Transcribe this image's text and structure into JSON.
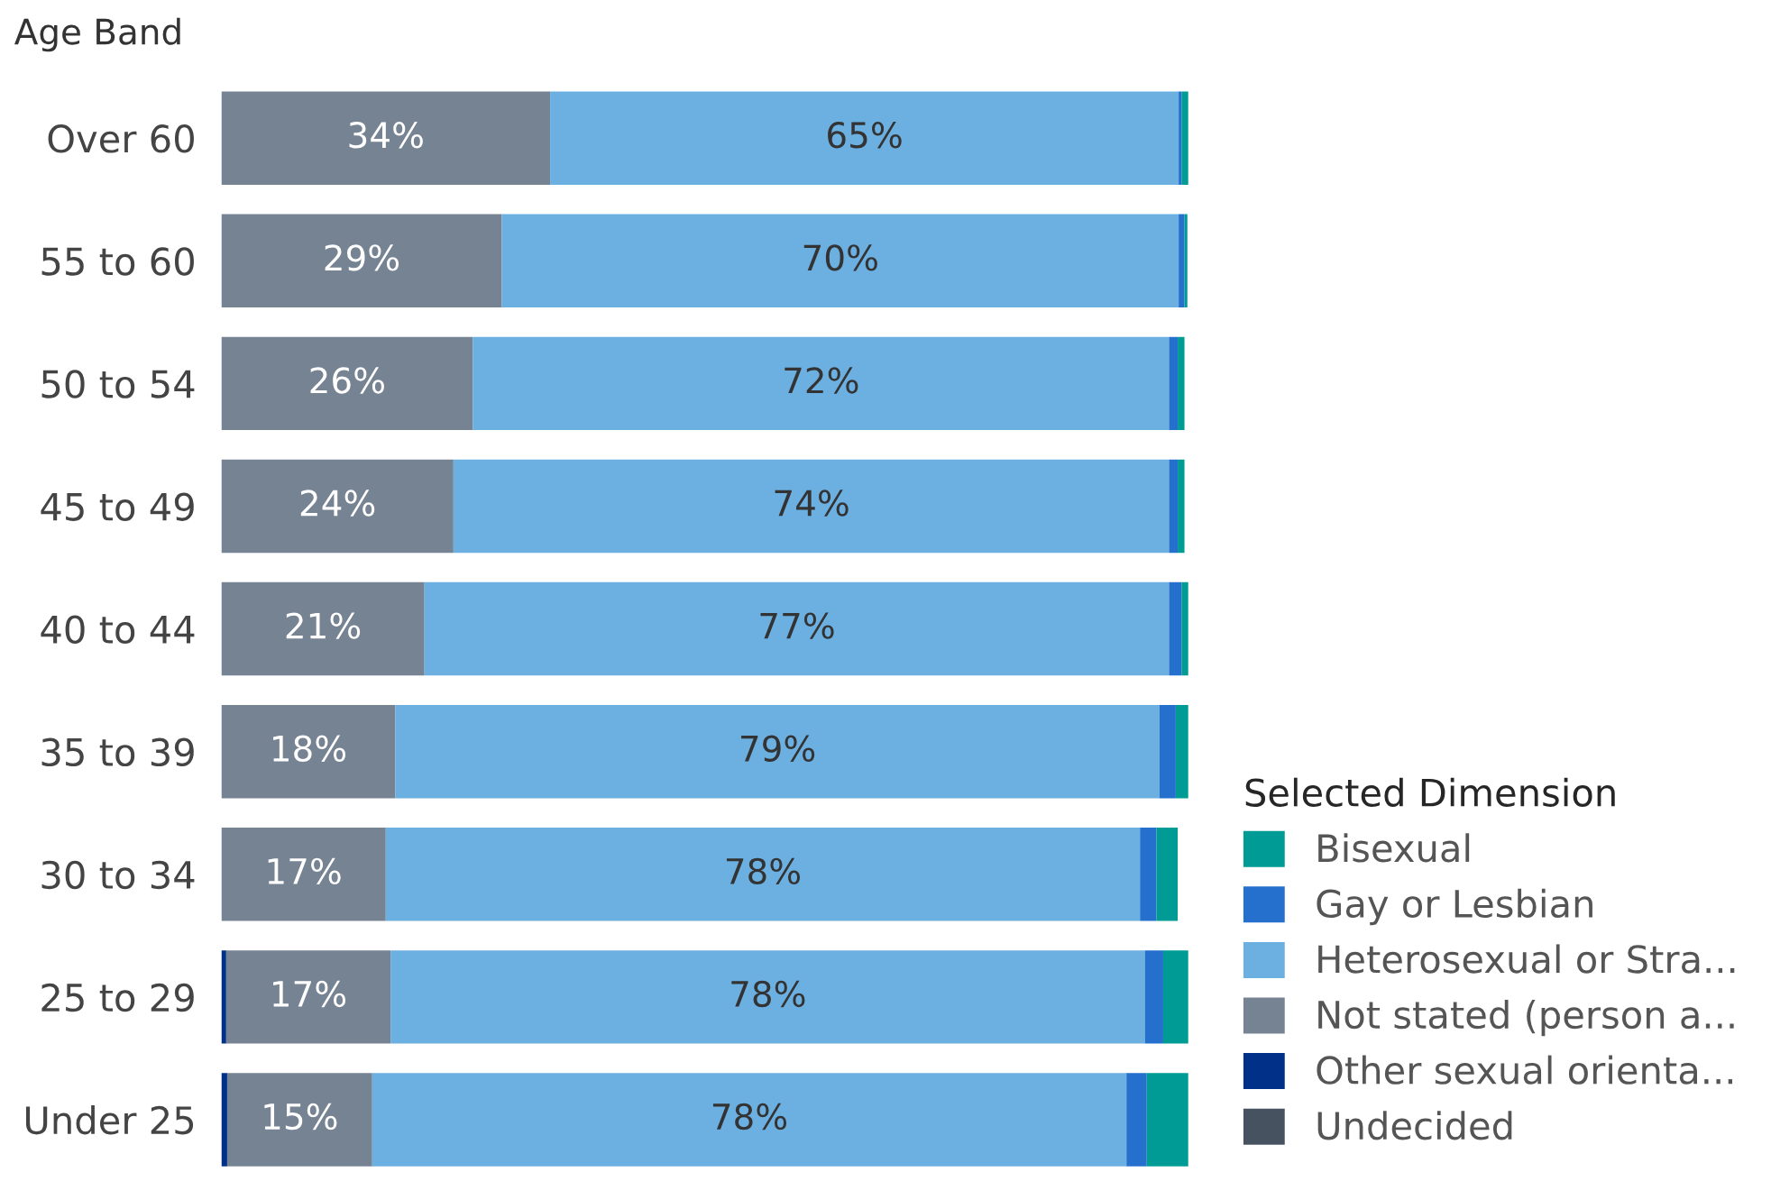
{
  "chart_data": {
    "type": "bar",
    "orientation": "horizontal",
    "stacked": true,
    "xlim": [
      0,
      100
    ],
    "ylabel": "Age Band",
    "legend_title": "Selected Dimension",
    "legend": "bottom right",
    "categories": [
      "Over 60",
      "55 to 60",
      "50 to 54",
      "45 to 49",
      "40 to 44",
      "35 to 39",
      "30 to 34",
      "25 to 29",
      "Under 25"
    ],
    "series": [
      {
        "name": "Undecided",
        "color": "#465260",
        "values": [
          null,
          null,
          null,
          null,
          null,
          null,
          null,
          null,
          null
        ]
      },
      {
        "name": "Other sexual orienta...",
        "color": "#003087",
        "values": [
          null,
          null,
          null,
          null,
          null,
          null,
          null,
          0.5,
          0.6
        ]
      },
      {
        "name": "Not stated (person a...",
        "color": "#768393",
        "values": [
          34,
          29,
          26,
          24,
          21,
          18,
          17,
          17,
          15
        ],
        "value_labels": [
          "34%",
          "29%",
          "26%",
          "24%",
          "21%",
          "18%",
          "17%",
          "17%",
          "15%"
        ]
      },
      {
        "name": "Heterosexual or Stra...",
        "color": "#6cafe1",
        "values": [
          65,
          70,
          72,
          74,
          77,
          79,
          78,
          78,
          78
        ],
        "value_labels": [
          "65%",
          "70%",
          "72%",
          "74%",
          "77%",
          "79%",
          "78%",
          "78%",
          "78%"
        ]
      },
      {
        "name": "Gay or Lesbian",
        "color": "#2470cc",
        "values": [
          0.3,
          0.6,
          0.9,
          0.9,
          1.3,
          1.7,
          1.7,
          1.9,
          2.1
        ]
      },
      {
        "name": "Bisexual",
        "color": "#009b94",
        "values": [
          0.7,
          0.3,
          0.7,
          0.7,
          0.7,
          1.3,
          2.2,
          2.6,
          4.3
        ]
      }
    ]
  }
}
